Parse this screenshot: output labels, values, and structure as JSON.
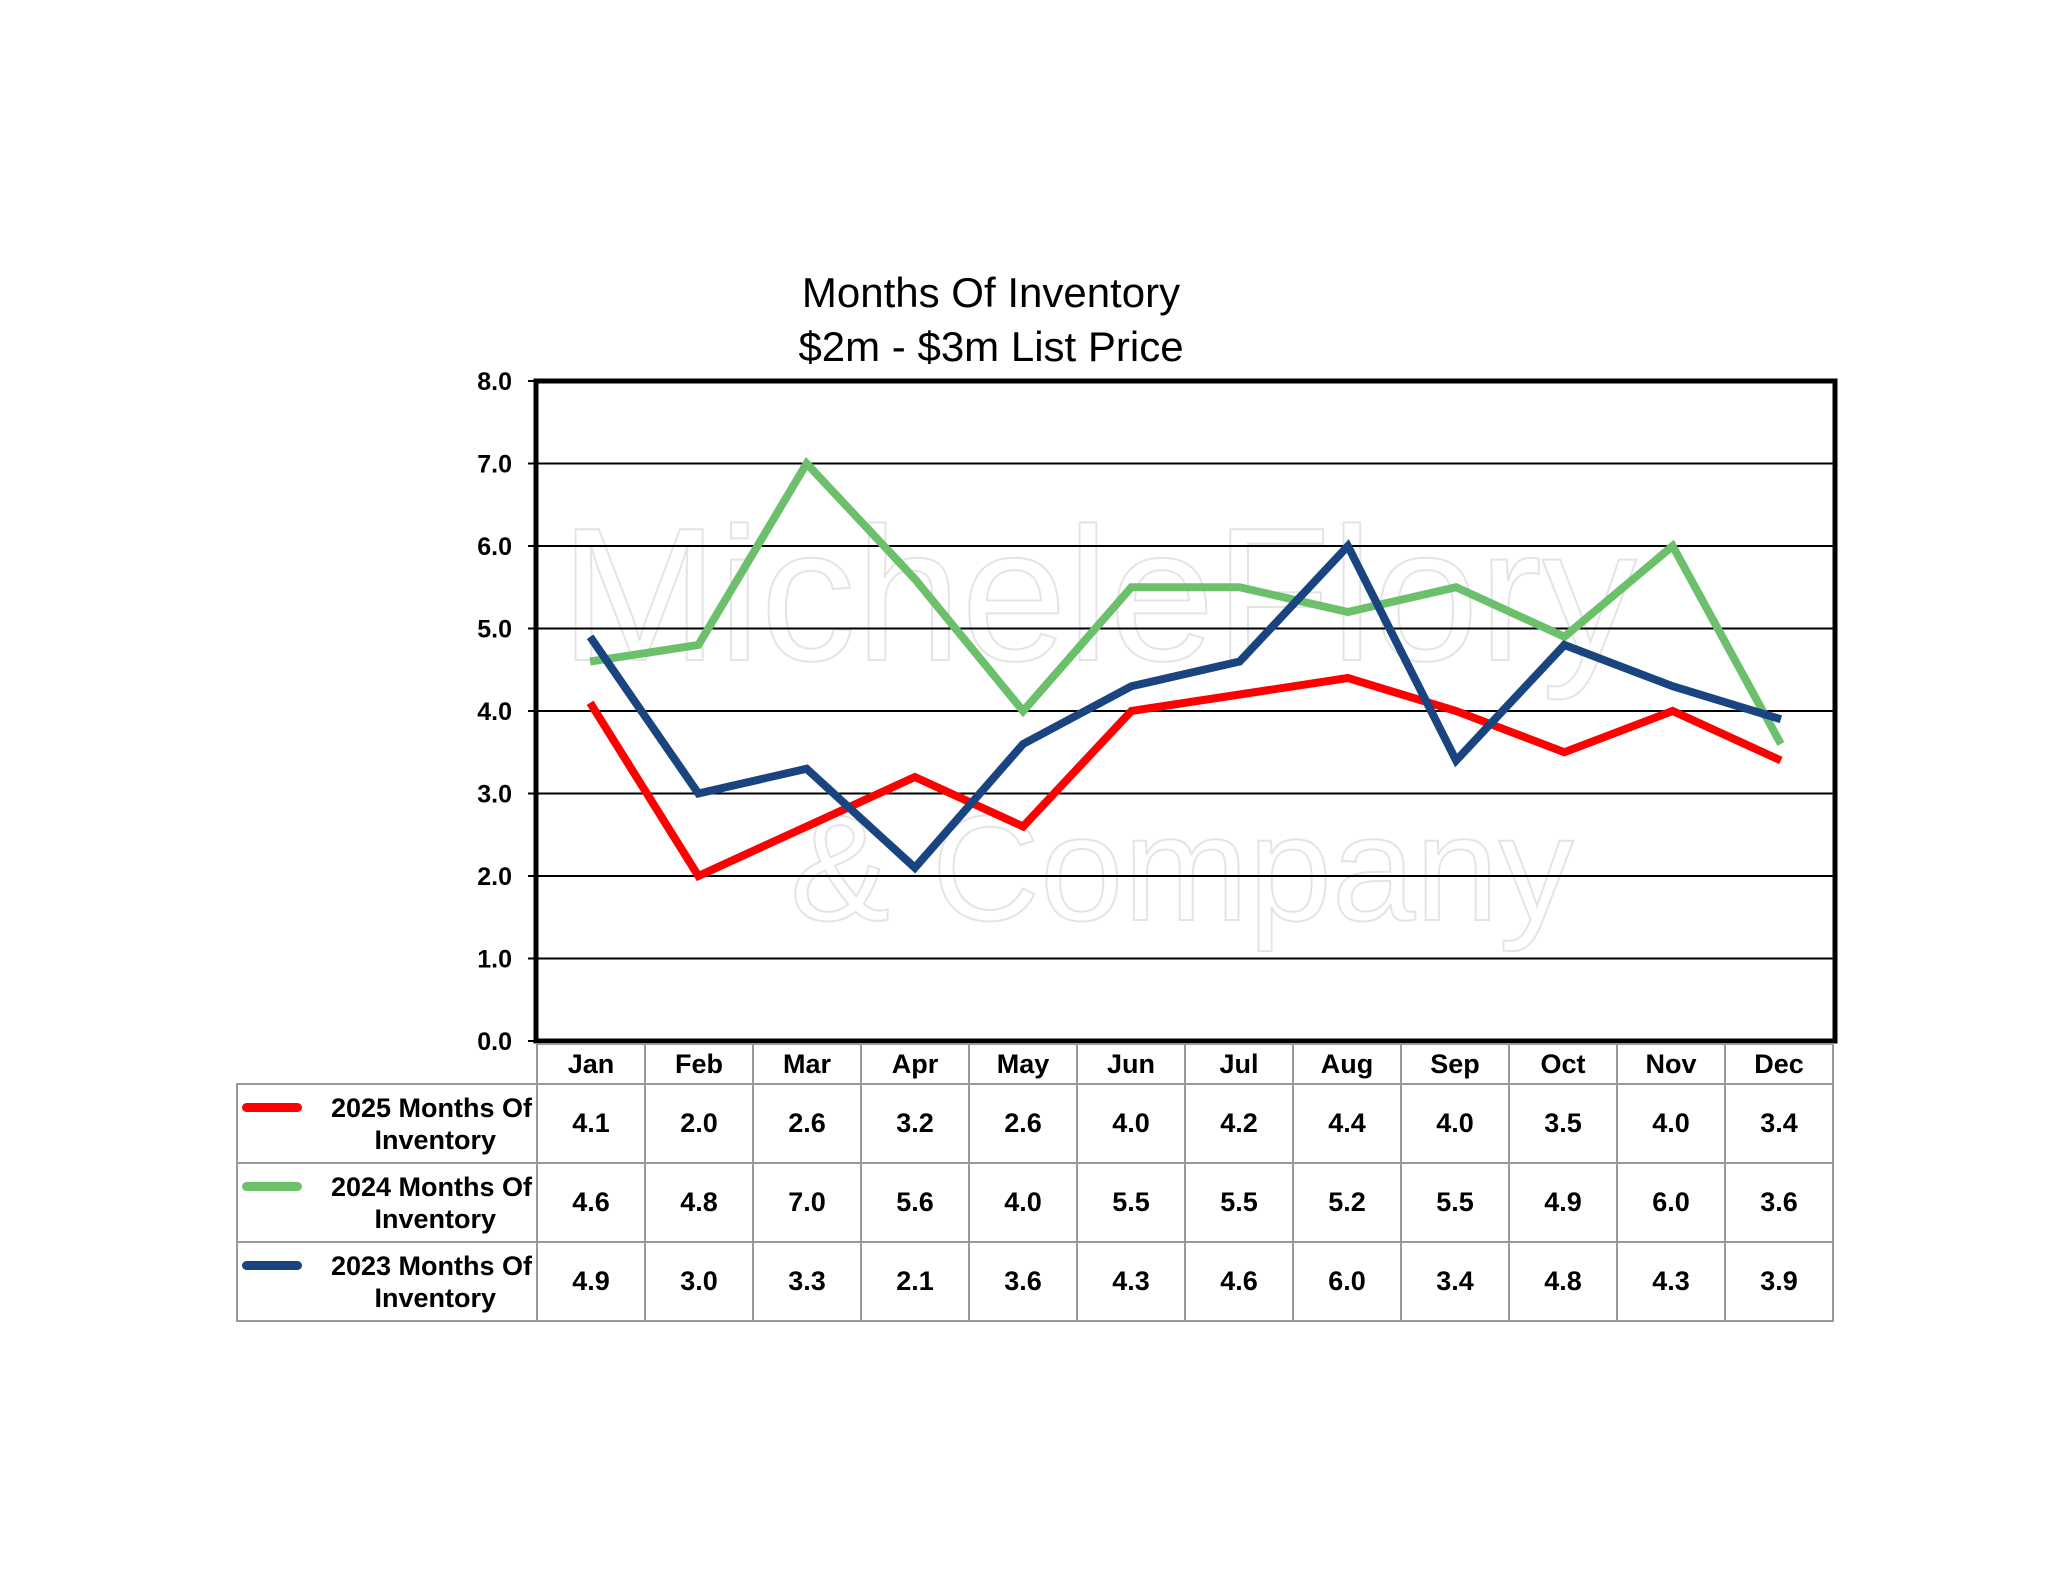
{
  "chart_data": {
    "type": "line",
    "title": [
      "Months Of Inventory",
      "$2m - $3m List Price"
    ],
    "categories": [
      "Jan",
      "Feb",
      "Mar",
      "Apr",
      "May",
      "Jun",
      "Jul",
      "Aug",
      "Sep",
      "Oct",
      "Nov",
      "Dec"
    ],
    "ylim": [
      0,
      8
    ],
    "yticks": [
      "0.0",
      "1.0",
      "2.0",
      "3.0",
      "4.0",
      "5.0",
      "6.0",
      "7.0",
      "8.0"
    ],
    "grid": true,
    "legend": "data-table-below",
    "series": [
      {
        "name": "2025 Months Of Inventory",
        "label_line1": "2025 Months Of",
        "label_line2": "Inventory",
        "color": "#ff0000",
        "values": [
          4.1,
          2.0,
          2.6,
          3.2,
          2.6,
          4.0,
          4.2,
          4.4,
          4.0,
          3.5,
          4.0,
          3.4
        ],
        "display": [
          "4.1",
          "2.0",
          "2.6",
          "3.2",
          "2.6",
          "4.0",
          "4.2",
          "4.4",
          "4.0",
          "3.5",
          "4.0",
          "3.4"
        ]
      },
      {
        "name": "2024 Months Of Inventory",
        "label_line1": "2024 Months Of",
        "label_line2": "Inventory",
        "color": "#6cc06c",
        "values": [
          4.6,
          4.8,
          7.0,
          5.6,
          4.0,
          5.5,
          5.5,
          5.2,
          5.5,
          4.9,
          6.0,
          3.6
        ],
        "display": [
          "4.6",
          "4.8",
          "7.0",
          "5.6",
          "4.0",
          "5.5",
          "5.5",
          "5.2",
          "5.5",
          "4.9",
          "6.0",
          "3.6"
        ]
      },
      {
        "name": "2023 Months Of Inventory",
        "label_line1": "2023 Months Of",
        "label_line2": "Inventory",
        "color": "#1a4480",
        "values": [
          4.9,
          3.0,
          3.3,
          2.1,
          3.6,
          4.3,
          4.6,
          6.0,
          3.4,
          4.8,
          4.3,
          3.9
        ],
        "display": [
          "4.9",
          "3.0",
          "3.3",
          "2.1",
          "3.6",
          "4.3",
          "4.6",
          "6.0",
          "3.4",
          "4.8",
          "4.3",
          "3.9"
        ]
      }
    ],
    "watermark": "MicheleFlory & Company"
  }
}
